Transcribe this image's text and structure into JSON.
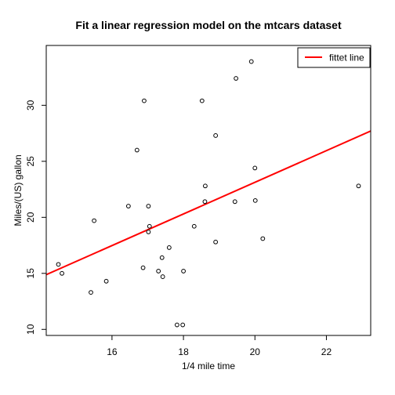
{
  "chart_data": {
    "type": "scatter",
    "title": "Fit a linear regression model on the mtcars dataset",
    "xlabel": "1/4 mile time",
    "ylabel": "Miles/(US) gallon",
    "xlim": [
      14.16,
      23.24
    ],
    "ylim": [
      9.46,
      35.34
    ],
    "xticks": [
      16,
      18,
      20,
      22
    ],
    "yticks": [
      10,
      15,
      20,
      25,
      30
    ],
    "grid": false,
    "legend": {
      "position": "top-right",
      "entries": [
        {
          "label": "fittet line",
          "color": "#ff0000"
        }
      ]
    },
    "series": [
      {
        "name": "",
        "type": "scatter",
        "marker": "open-circle",
        "color": "#000000",
        "points": [
          [
            14.5,
            15.8
          ],
          [
            14.6,
            15.0
          ],
          [
            15.41,
            13.3
          ],
          [
            15.5,
            19.7
          ],
          [
            15.84,
            14.3
          ],
          [
            16.46,
            21.0
          ],
          [
            16.7,
            26.0
          ],
          [
            16.87,
            15.5
          ],
          [
            16.9,
            30.4
          ],
          [
            17.02,
            21.0
          ],
          [
            17.02,
            18.7
          ],
          [
            17.05,
            19.2
          ],
          [
            17.3,
            15.2
          ],
          [
            17.4,
            16.4
          ],
          [
            17.42,
            14.7
          ],
          [
            17.6,
            17.3
          ],
          [
            17.82,
            10.4
          ],
          [
            17.98,
            10.4
          ],
          [
            18.0,
            15.2
          ],
          [
            18.3,
            19.2
          ],
          [
            18.52,
            30.4
          ],
          [
            18.6,
            21.4
          ],
          [
            18.61,
            22.8
          ],
          [
            18.9,
            17.8
          ],
          [
            18.9,
            27.3
          ],
          [
            19.44,
            21.4
          ],
          [
            19.47,
            32.4
          ],
          [
            19.9,
            33.9
          ],
          [
            20.0,
            24.4
          ],
          [
            20.01,
            21.5
          ],
          [
            20.22,
            18.1
          ],
          [
            22.9,
            22.8
          ]
        ]
      }
    ],
    "fit_line": {
      "label": "fittet line",
      "color": "#ff0000",
      "intercept": -5.114,
      "slope": 1.412
    }
  }
}
